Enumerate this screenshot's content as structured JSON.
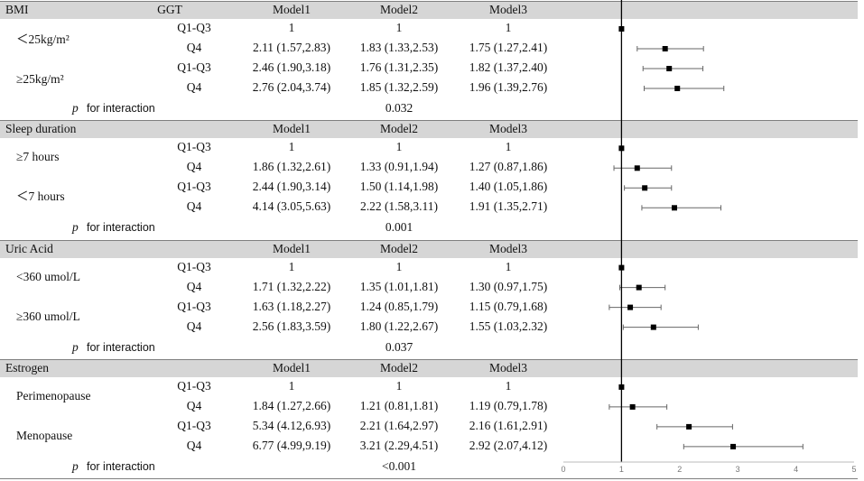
{
  "chart_data": {
    "type": "forest",
    "x_ticks": [
      "0",
      "1",
      "2",
      "3",
      "4",
      "5"
    ],
    "xlim": [
      0,
      5
    ],
    "reference_line": 1,
    "groups": [
      {
        "header": "BMI",
        "subheader": "GGT",
        "models": [
          "Model1",
          "Model2",
          "Model3"
        ],
        "interaction_label": "for interaction",
        "interaction_p": "0.032",
        "subgroups": [
          {
            "label": "＜25kg/m²",
            "rows": [
              {
                "level": "Q1-Q3",
                "m1": "1",
                "m2": "1",
                "m3": "1",
                "or": 1,
                "lo": 1,
                "hi": 1
              },
              {
                "level": "Q4",
                "m1": "2.11 (1.57,2.83)",
                "m2": "1.83 (1.33,2.53)",
                "m3": "1.75 (1.27,2.41)",
                "or": 1.75,
                "lo": 1.27,
                "hi": 2.41
              }
            ]
          },
          {
            "label": "≥25kg/m²",
            "rows": [
              {
                "level": "Q1-Q3",
                "m1": "2.46 (1.90,3.18)",
                "m2": "1.76 (1.31,2.35)",
                "m3": "1.82 (1.37,2.40)",
                "or": 1.82,
                "lo": 1.37,
                "hi": 2.4
              },
              {
                "level": "Q4",
                "m1": "2.76 (2.04,3.74)",
                "m2": "1.85 (1.32,2.59)",
                "m3": "1.96 (1.39,2.76)",
                "or": 1.96,
                "lo": 1.39,
                "hi": 2.76
              }
            ]
          }
        ]
      },
      {
        "header": "Sleep duration",
        "subheader": "",
        "models": [
          "Model1",
          "Model2",
          "Model3"
        ],
        "interaction_label": "for interaction",
        "interaction_p": "0.001",
        "subgroups": [
          {
            "label": "≥7 hours",
            "rows": [
              {
                "level": "Q1-Q3",
                "m1": "1",
                "m2": "1",
                "m3": "1",
                "or": 1,
                "lo": 1,
                "hi": 1
              },
              {
                "level": "Q4",
                "m1": "1.86 (1.32,2.61)",
                "m2": "1.33 (0.91,1.94)",
                "m3": "1.27 (0.87,1.86)",
                "or": 1.27,
                "lo": 0.87,
                "hi": 1.86
              }
            ]
          },
          {
            "label": "＜7 hours",
            "rows": [
              {
                "level": "Q1-Q3",
                "m1": "2.44 (1.90,3.14)",
                "m2": "1.50 (1.14,1.98)",
                "m3": "1.40 (1.05,1.86)",
                "or": 1.4,
                "lo": 1.05,
                "hi": 1.86
              },
              {
                "level": "Q4",
                "m1": "4.14 (3.05,5.63)",
                "m2": "2.22 (1.58,3.11)",
                "m3": "1.91 (1.35,2.71)",
                "or": 1.91,
                "lo": 1.35,
                "hi": 2.71
              }
            ]
          }
        ]
      },
      {
        "header": "Uric Acid",
        "subheader": "",
        "models": [
          "Model1",
          "Model2",
          "Model3"
        ],
        "interaction_label": "for interaction",
        "interaction_p": "0.037",
        "subgroups": [
          {
            "label": "<360 umol/L",
            "rows": [
              {
                "level": "Q1-Q3",
                "m1": "1",
                "m2": "1",
                "m3": "1",
                "or": 1,
                "lo": 1,
                "hi": 1
              },
              {
                "level": "Q4",
                "m1": "1.71 (1.32,2.22)",
                "m2": "1.35 (1.01,1.81)",
                "m3": "1.30 (0.97,1.75)",
                "or": 1.3,
                "lo": 0.97,
                "hi": 1.75
              }
            ]
          },
          {
            "label": "≥360 umol/L",
            "rows": [
              {
                "level": "Q1-Q3",
                "m1": "1.63 (1.18,2.27)",
                "m2": "1.24 (0.85,1.79)",
                "m3": "1.15 (0.79,1.68)",
                "or": 1.15,
                "lo": 0.79,
                "hi": 1.68
              },
              {
                "level": "Q4",
                "m1": "2.56 (1.83,3.59)",
                "m2": "1.80 (1.22,2.67)",
                "m3": "1.55 (1.03,2.32)",
                "or": 1.55,
                "lo": 1.03,
                "hi": 2.32
              }
            ]
          }
        ]
      },
      {
        "header": "Estrogen",
        "subheader": "",
        "models": [
          "Model1",
          "Model2",
          "Model3"
        ],
        "interaction_label": "for interaction",
        "interaction_p": "<0.001",
        "subgroups": [
          {
            "label": "Perimenopause",
            "rows": [
              {
                "level": "Q1-Q3",
                "m1": "1",
                "m2": "1",
                "m3": "1",
                "or": 1,
                "lo": 1,
                "hi": 1
              },
              {
                "level": "Q4",
                "m1": "1.84 (1.27,2.66)",
                "m2": "1.21 (0.81,1.81)",
                "m3": "1.19 (0.79,1.78)",
                "or": 1.19,
                "lo": 0.79,
                "hi": 1.78
              }
            ]
          },
          {
            "label": "Menopause",
            "rows": [
              {
                "level": "Q1-Q3",
                "m1": "5.34 (4.12,6.93)",
                "m2": "2.21 (1.64,2.97)",
                "m3": "2.16 (1.61,2.91)",
                "or": 2.16,
                "lo": 1.61,
                "hi": 2.91
              },
              {
                "level": "Q4",
                "m1": "6.77 (4.99,9.19)",
                "m2": "3.21 (2.29,4.51)",
                "m3": "2.92 (2.07,4.12)",
                "or": 2.92,
                "lo": 2.07,
                "hi": 4.12
              }
            ]
          }
        ]
      }
    ]
  }
}
